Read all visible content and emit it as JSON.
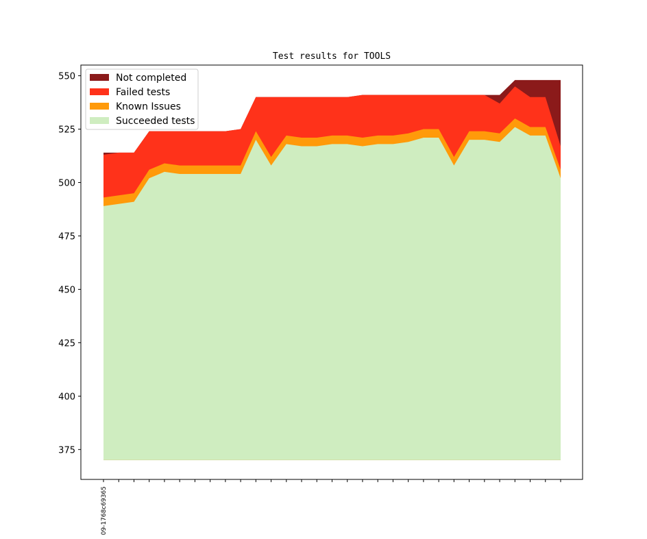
{
  "chart_data": {
    "type": "area",
    "title": "Test results for TOOLS",
    "xlabel": "",
    "ylabel": "",
    "ylim": [
      361,
      555
    ],
    "yticks": [
      375,
      400,
      425,
      450,
      475,
      500,
      525,
      550
    ],
    "x": [
      0,
      1,
      2,
      3,
      4,
      5,
      6,
      7,
      8,
      9,
      10,
      11,
      12,
      13,
      14,
      15,
      16,
      17,
      18,
      19,
      20,
      21,
      22,
      23,
      24,
      25,
      26,
      27,
      28,
      29,
      30
    ],
    "x_tick_labels": [
      "09-1768c69365",
      "",
      "",
      "",
      "",
      "",
      "",
      "",
      "",
      "",
      "",
      "",
      "",
      "",
      "",
      "",
      "",
      "",
      "",
      "",
      "",
      "",
      "",
      "",
      "",
      "",
      "",
      "",
      "",
      "",
      ""
    ],
    "baseline": 370,
    "grid": false,
    "legend_position": "top-left",
    "series": [
      {
        "name": "Succeeded tests",
        "color": "#cfedc0",
        "values": [
          489,
          490,
          491,
          502,
          505,
          504,
          504,
          504,
          504,
          504,
          520,
          508,
          518,
          517,
          517,
          518,
          518,
          517,
          518,
          518,
          519,
          521,
          521,
          508,
          520,
          520,
          519,
          526,
          522,
          522,
          502
        ]
      },
      {
        "name": "Known Issues",
        "color": "#ff9a0a",
        "values": [
          493,
          494,
          495,
          506,
          509,
          508,
          508,
          508,
          508,
          508,
          524,
          512,
          522,
          521,
          521,
          522,
          522,
          521,
          522,
          522,
          523,
          525,
          525,
          512,
          524,
          524,
          523,
          530,
          526,
          526,
          506
        ]
      },
      {
        "name": "Failed tests",
        "color": "#ff321a",
        "values": [
          513,
          514,
          514,
          524,
          524,
          524,
          524,
          524,
          524,
          525,
          540,
          540,
          540,
          540,
          540,
          540,
          540,
          541,
          541,
          541,
          541,
          541,
          541,
          541,
          541,
          541,
          537,
          545,
          540,
          540,
          517
        ]
      },
      {
        "name": "Not completed",
        "color": "#8b1a1a",
        "values": [
          514,
          514,
          514,
          524,
          524,
          524,
          524,
          524,
          524,
          525,
          540,
          540,
          540,
          540,
          540,
          540,
          540,
          541,
          541,
          541,
          541,
          541,
          541,
          541,
          541,
          541,
          541,
          548,
          548,
          548,
          548
        ]
      }
    ]
  }
}
